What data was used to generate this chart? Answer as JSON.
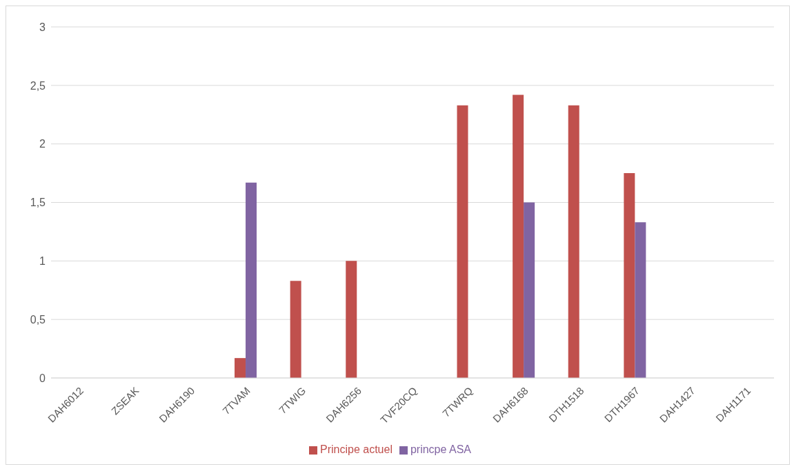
{
  "chart_data": {
    "type": "bar",
    "categories": [
      "DAH6012",
      "ZSEAK",
      "DAH6190",
      "7TVAM",
      "7TWIG",
      "DAH6256",
      "TVF20CQ",
      "7TWRQ",
      "DAH6168",
      "DTH1518",
      "DTH1967",
      "DAH1427",
      "DAH1171"
    ],
    "series": [
      {
        "name": "Principe actuel",
        "color": "#c0504d",
        "values": [
          0,
          0,
          0,
          0.17,
          0.83,
          1,
          0,
          2.33,
          2.42,
          2.33,
          1.75,
          0,
          0
        ]
      },
      {
        "name": "princpe ASA",
        "color": "#8064a2",
        "values": [
          0,
          0,
          0,
          1.67,
          0,
          0,
          0,
          0,
          1.5,
          0,
          1.33,
          0,
          0
        ]
      }
    ],
    "ylim": [
      0,
      3
    ],
    "yticks": [
      0,
      {
        "value": 0.5,
        "label": "0,5"
      },
      1,
      {
        "value": 1.5,
        "label": "1,5"
      },
      2,
      {
        "value": 2.5,
        "label": "2,5"
      },
      3
    ],
    "grid": "y",
    "legend": "bottom"
  }
}
